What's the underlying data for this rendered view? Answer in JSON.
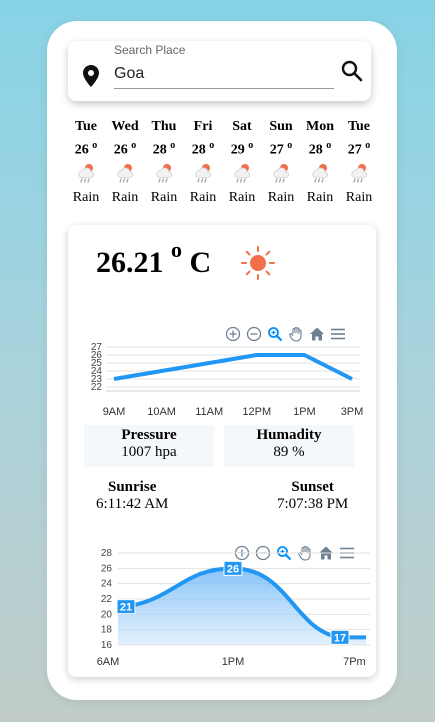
{
  "search": {
    "label": "Search Place",
    "value": "Goa"
  },
  "forecast": [
    {
      "day": "Tue",
      "temp": "26",
      "desc": "Rain"
    },
    {
      "day": "Wed",
      "temp": "26",
      "desc": "Rain"
    },
    {
      "day": "Thu",
      "temp": "28",
      "desc": "Rain"
    },
    {
      "day": "Fri",
      "temp": "28",
      "desc": "Rain"
    },
    {
      "day": "Sat",
      "temp": "29",
      "desc": "Rain"
    },
    {
      "day": "Sun",
      "temp": "27",
      "desc": "Rain"
    },
    {
      "day": "Mon",
      "temp": "28",
      "desc": "Rain"
    },
    {
      "day": "Tue",
      "temp": "27",
      "desc": "Rain"
    }
  ],
  "current": {
    "temp": "26.21",
    "degree_symbol": "o",
    "unit": "C"
  },
  "pressure": {
    "label": "Pressure",
    "value": "1007 hpa"
  },
  "humidity": {
    "label": "Humadity",
    "value": "89 %"
  },
  "sunrise": {
    "label": "Sunrise",
    "value": "6:11:42 AM"
  },
  "sunset": {
    "label": "Sunset",
    "value": "7:07:38 PM"
  },
  "colors": {
    "accent": "#2196f3",
    "sun": "#f0704a"
  },
  "chart_data": [
    {
      "type": "line",
      "categories": [
        "9AM",
        "10AM",
        "11AM",
        "12PM",
        "1PM",
        "3PM"
      ],
      "values": [
        23,
        24,
        25,
        26,
        26,
        23
      ],
      "yticks": [
        22,
        23,
        24,
        25,
        26,
        27
      ],
      "ylim": [
        22,
        27
      ],
      "grid": true
    },
    {
      "type": "area",
      "categories": [
        "6AM",
        "1PM",
        "7Pm"
      ],
      "values": [
        21,
        26,
        17
      ],
      "data_labels": [
        "21",
        "26",
        "17"
      ],
      "yticks": [
        16,
        18,
        20,
        22,
        24,
        26,
        28
      ],
      "ylim": [
        16,
        28
      ],
      "grid": true
    }
  ]
}
